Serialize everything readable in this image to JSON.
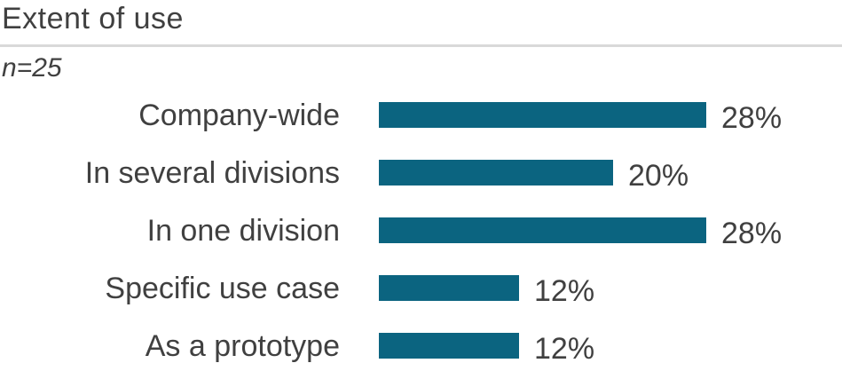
{
  "header": {
    "title": "Extent of use"
  },
  "chart_data": {
    "type": "bar",
    "orientation": "horizontal",
    "title": "Extent of use",
    "subtitle": "n=25",
    "n": 25,
    "unit": "%",
    "categories": [
      "Company-wide",
      "In several divisions",
      "In one division",
      "Specific use case",
      "As a prototype"
    ],
    "values": [
      28,
      20,
      28,
      12,
      12
    ],
    "value_labels": [
      "28%",
      "20%",
      "28%",
      "12%",
      "12%"
    ],
    "axis_labels_visible": false,
    "grid": false,
    "legend": "none",
    "colors": {
      "bar": "#0b6480",
      "text": "#404040",
      "divider": "#d9d9d9",
      "background": "#ffffff"
    }
  }
}
